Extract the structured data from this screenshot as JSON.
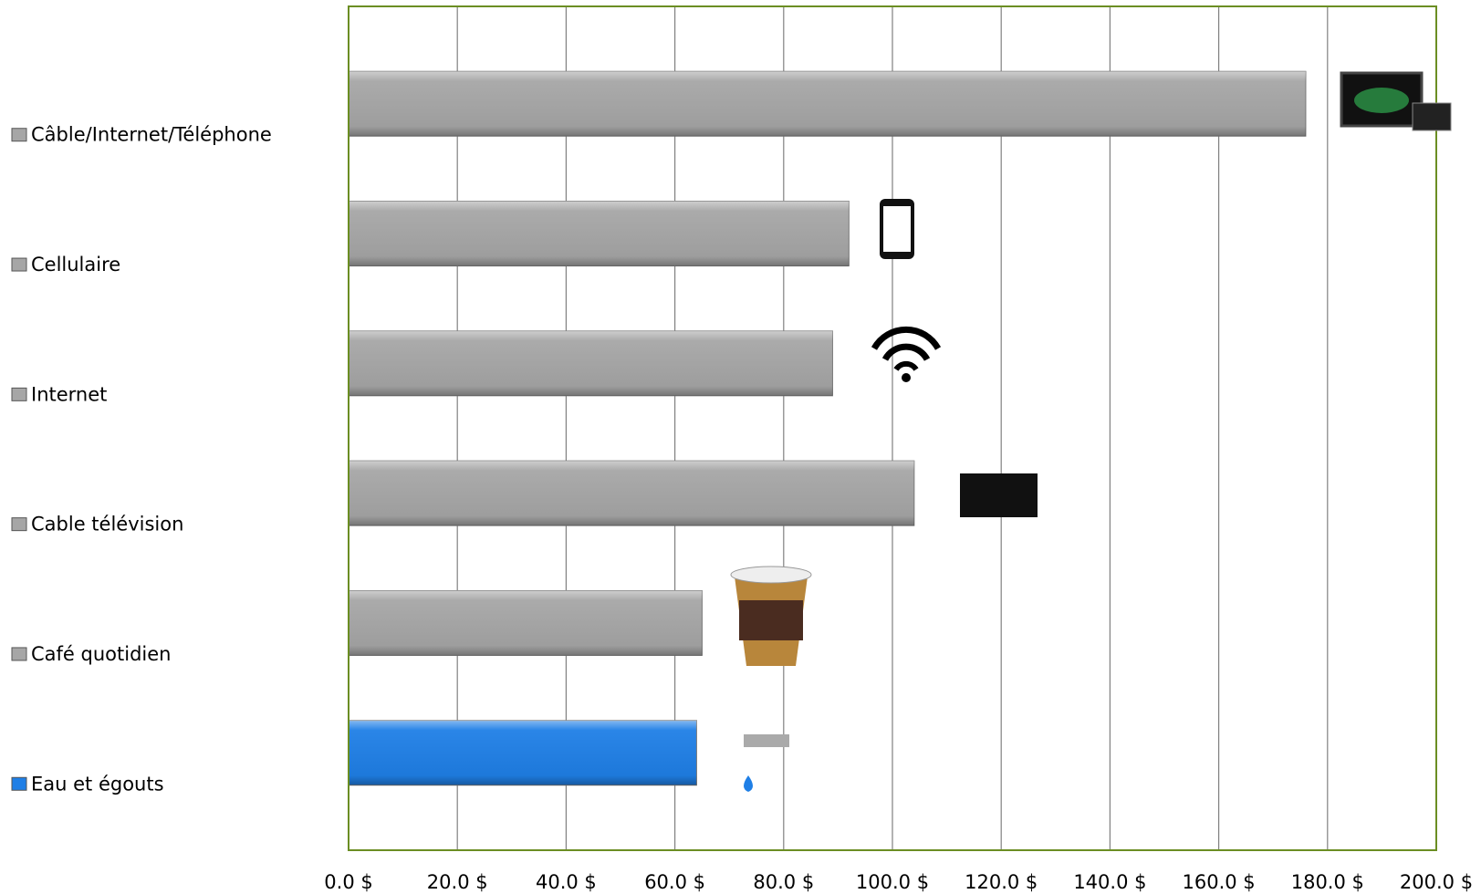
{
  "chart_data": {
    "type": "hbar",
    "categories": [
      "Câble/Internet/Téléphone",
      "Cellulaire",
      "Internet",
      "Cable télévision",
      "Café quotidien",
      "Eau et égouts"
    ],
    "values": [
      176,
      92,
      89,
      104,
      65,
      64
    ],
    "colors": [
      "#a6a6a6",
      "#a6a6a6",
      "#a6a6a6",
      "#a6a6a6",
      "#a6a6a6",
      "#1f7fe6"
    ],
    "xlim": [
      0,
      200
    ],
    "xticks": [
      {
        "value": 0,
        "label": "0.0 $"
      },
      {
        "value": 20,
        "label": "20.0 $"
      },
      {
        "value": 40,
        "label": "40.0 $"
      },
      {
        "value": 60,
        "label": "60.0 $"
      },
      {
        "value": 80,
        "label": "80.0 $"
      },
      {
        "value": 100,
        "label": "100.0 $"
      },
      {
        "value": 120,
        "label": "120.0 $"
      },
      {
        "value": 140,
        "label": "140.0 $"
      },
      {
        "value": 160,
        "label": "160.0 $"
      },
      {
        "value": 180,
        "label": "180.0 $"
      },
      {
        "value": 200,
        "label": "200.0 $"
      }
    ],
    "grid": true
  }
}
